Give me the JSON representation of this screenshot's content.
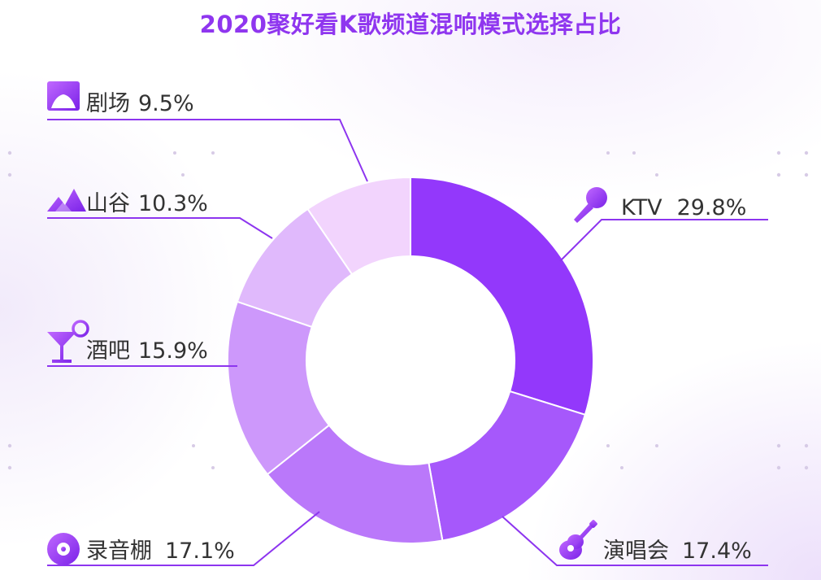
{
  "chart_data": {
    "type": "pie",
    "title": "2020聚好看K歌频道混响模式选择占比",
    "slices": [
      {
        "label": "KTV",
        "value_label": "29.8%",
        "value": 29.8,
        "color": "#9338fb",
        "icon": "microphone-icon"
      },
      {
        "label": "演唱会",
        "value_label": "17.4%",
        "value": 17.4,
        "color": "#a658fb",
        "icon": "guitar-icon"
      },
      {
        "label": "录音棚",
        "value_label": "17.1%",
        "value": 17.1,
        "color": "#ba78fa",
        "icon": "vinyl-disc-icon"
      },
      {
        "label": "酒吧",
        "value_label": "15.9%",
        "value": 15.9,
        "color": "#cd98fb",
        "icon": "cocktail-glass-icon"
      },
      {
        "label": "山谷",
        "value_label": "10.3%",
        "value": 10.3,
        "color": "#e0b9fc",
        "icon": "mountain-icon"
      },
      {
        "label": "剧场",
        "value_label": "9.5%",
        "value": 9.5,
        "color": "#f2d4fd",
        "icon": "theater-stage-icon"
      }
    ],
    "donut": true,
    "legend": "callout-labels"
  },
  "colors": {
    "title": "#8f36ef",
    "accent": "#8d35ef",
    "leader": "#8d35ef"
  }
}
